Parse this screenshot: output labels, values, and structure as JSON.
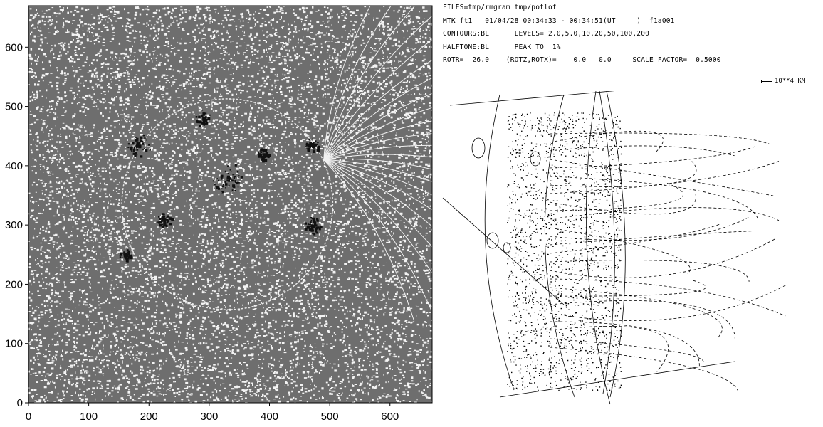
{
  "left_panel": {
    "x_ticks": [
      "0",
      "100",
      "200",
      "300",
      "400",
      "500",
      "600"
    ],
    "y_ticks": [
      "0",
      "100",
      "200",
      "300",
      "400",
      "500",
      "600"
    ],
    "x_range": [
      0,
      670
    ],
    "y_range": [
      0,
      670
    ]
  },
  "header": {
    "files": "FILES=tmp/rmgram tmp/potlof",
    "mtk": "MTK ft1   01/04/28 00:34:33 - 00:34:51(UT     )  f1a001",
    "contours": "CONTOURS:BL      LEVELS= 2.0,5.0,10,20,50,100,200",
    "halftone": "HALFTONE:BL      PEAK TO  1%",
    "rotr": "ROTR=  26.0    (ROTZ,ROTX)=    0.0   0.0     SCALE FACTOR=  0.5000"
  },
  "scale_bar": {
    "label": "10**4 KM"
  },
  "colors": {
    "ink": "#000000",
    "halftone_bg": "#6e6e6e",
    "speckle": "#f4f4f4"
  }
}
